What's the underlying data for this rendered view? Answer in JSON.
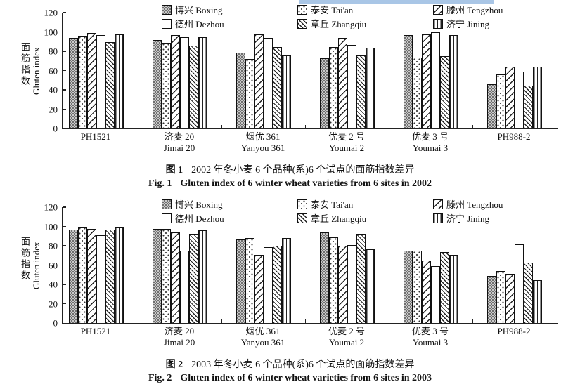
{
  "page": {
    "background": "#ffffff",
    "selection_highlight_color": "#a9c6e6"
  },
  "chart_data": [
    {
      "type": "bar",
      "caption_cn_label": "图 1",
      "caption_cn_text": "2002 年冬小麦 6 个品种(系)6 个试点的面筋指数差异",
      "caption_en_label": "Fig. 1",
      "caption_en_text": "Gluten index of 6 winter wheat varieties from 6 sites in 2002",
      "ylabel_cn": "面筋指数",
      "ylabel_en": "Gluten index",
      "ylim": [
        0,
        120
      ],
      "yticks": [
        0,
        20,
        40,
        60,
        80,
        100,
        120
      ],
      "grid": false,
      "legend_position": "top",
      "categories": [
        {
          "cn": "PH1521",
          "en": ""
        },
        {
          "cn": "济麦 20",
          "en": "Jimai 20"
        },
        {
          "cn": "烟优 361",
          "en": "Yanyou 361"
        },
        {
          "cn": "优麦 2 号",
          "en": "Youmai 2"
        },
        {
          "cn": "优麦 3 号",
          "en": "Youmai 3"
        },
        {
          "cn": "PH988-2",
          "en": ""
        }
      ],
      "series": [
        {
          "name_cn": "博兴",
          "name_en": "Boxing",
          "pattern": "checker",
          "values": [
            93,
            91,
            78,
            72,
            96,
            45
          ]
        },
        {
          "name_cn": "泰安",
          "name_en": "Tai'an",
          "pattern": "dots",
          "values": [
            95,
            88,
            71,
            84,
            73,
            55
          ]
        },
        {
          "name_cn": "滕州",
          "name_en": "Tengzhou",
          "pattern": "diagup",
          "values": [
            98,
            96,
            97,
            93,
            97,
            63
          ]
        },
        {
          "name_cn": "德州",
          "name_en": "Dezhou",
          "pattern": "plain",
          "values": [
            96,
            94,
            93,
            86,
            99,
            58
          ]
        },
        {
          "name_cn": "章丘",
          "name_en": "Zhangqiu",
          "pattern": "diagdown",
          "values": [
            89,
            85,
            84,
            75,
            74,
            44
          ]
        },
        {
          "name_cn": "济宁",
          "name_en": "Jining",
          "pattern": "vert",
          "values": [
            97,
            94,
            75,
            83,
            96,
            63
          ]
        }
      ]
    },
    {
      "type": "bar",
      "caption_cn_label": "图 2",
      "caption_cn_text": "2003 年冬小麦 6 个品种(系)6 个试点的面筋指数差异",
      "caption_en_label": "Fig. 2",
      "caption_en_text": "Gluten index of 6 winter wheat varieties from 6 sites in 2003",
      "ylabel_cn": "面筋指数",
      "ylabel_en": "Gluten index",
      "ylim": [
        0,
        120
      ],
      "yticks": [
        0,
        20,
        40,
        60,
        80,
        100,
        120
      ],
      "grid": false,
      "legend_position": "top",
      "categories": [
        {
          "cn": "PH1521",
          "en": ""
        },
        {
          "cn": "济麦 20",
          "en": "Jimai 20"
        },
        {
          "cn": "烟优 361",
          "en": "Yanyou 361"
        },
        {
          "cn": "优麦 2 号",
          "en": "Youmai 2"
        },
        {
          "cn": "优麦 3 号",
          "en": "Youmai 3"
        },
        {
          "cn": "PH988-2",
          "en": ""
        }
      ],
      "series": [
        {
          "name_cn": "博兴",
          "name_en": "Boxing",
          "pattern": "checker",
          "values": [
            96,
            97,
            86,
            93,
            74,
            48
          ]
        },
        {
          "name_cn": "泰安",
          "name_en": "Tai'an",
          "pattern": "dots",
          "values": [
            99,
            97,
            87,
            88,
            74,
            53
          ]
        },
        {
          "name_cn": "滕州",
          "name_en": "Tengzhou",
          "pattern": "diagup",
          "values": [
            97,
            93,
            70,
            79,
            64,
            50
          ]
        },
        {
          "name_cn": "德州",
          "name_en": "Dezhou",
          "pattern": "plain",
          "values": [
            90,
            74,
            78,
            80,
            58,
            81
          ]
        },
        {
          "name_cn": "章丘",
          "name_en": "Zhangqiu",
          "pattern": "diagdown",
          "values": [
            96,
            92,
            79,
            92,
            73,
            62
          ]
        },
        {
          "name_cn": "济宁",
          "name_en": "Jining",
          "pattern": "vert",
          "values": [
            99,
            95,
            87,
            76,
            70,
            44
          ]
        }
      ]
    }
  ]
}
